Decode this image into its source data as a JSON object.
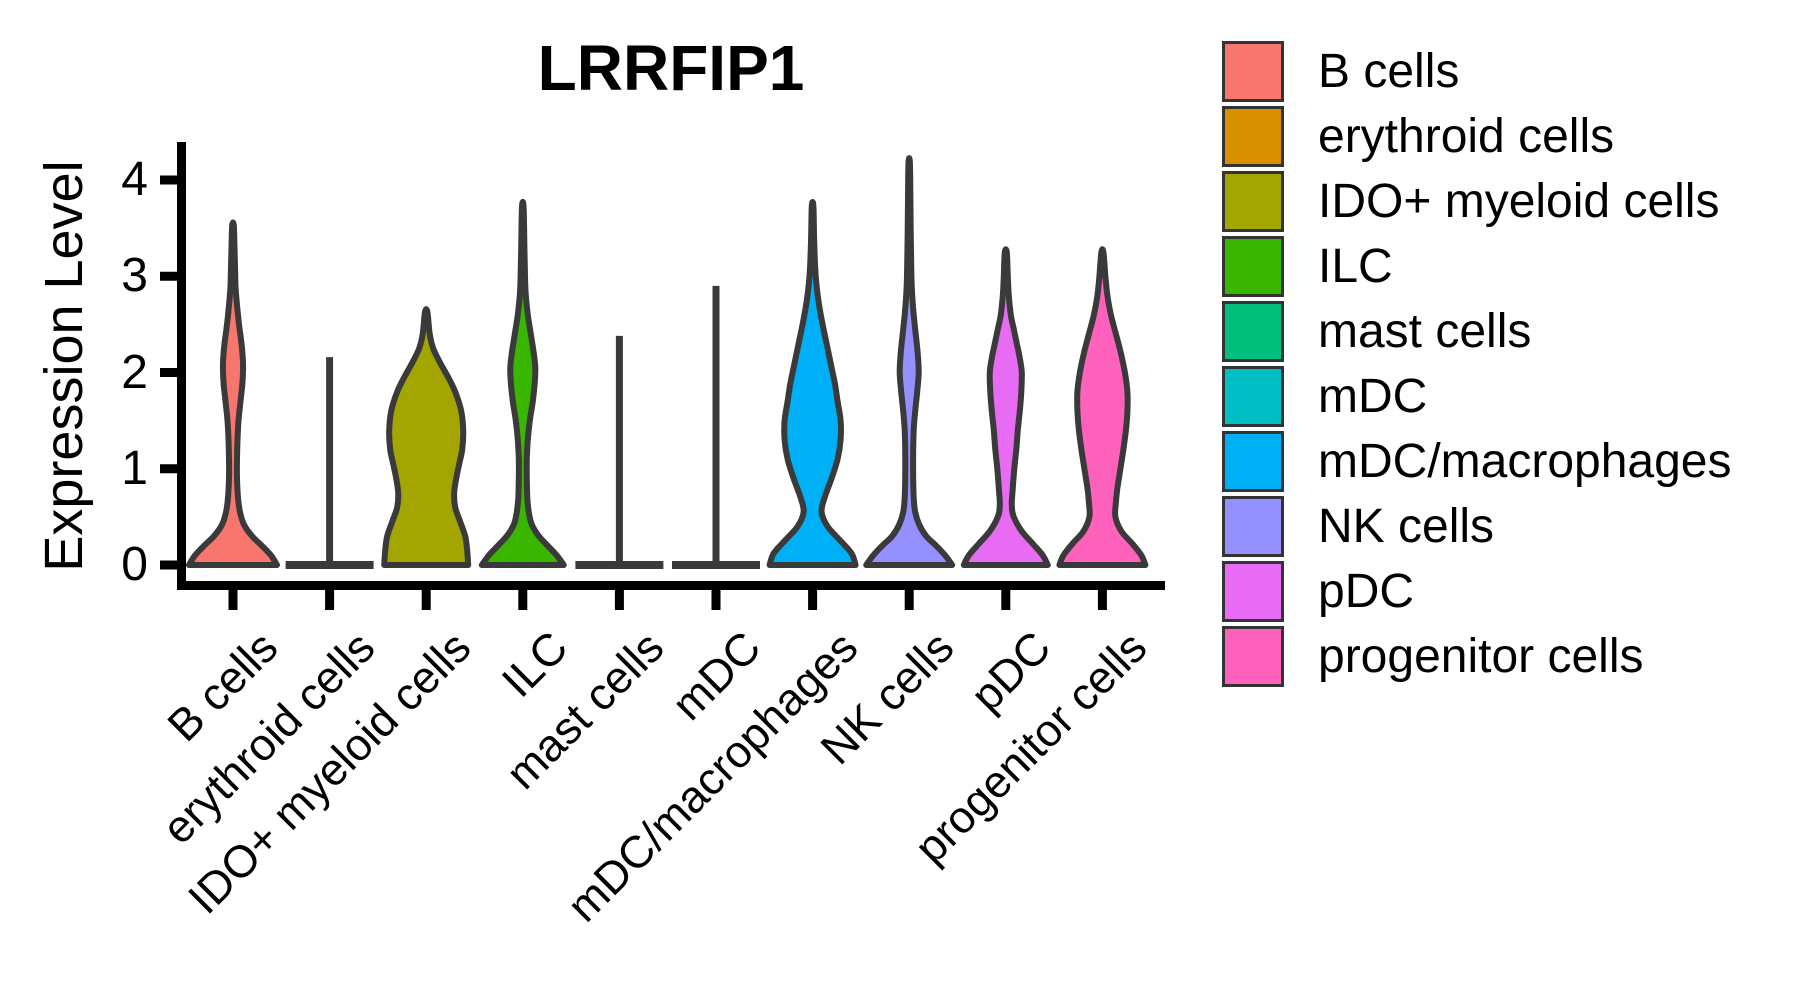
{
  "figure": {
    "background": "#ffffff",
    "outline_color": "#3A3A3A",
    "axis_color": "#000000"
  },
  "chart_data": {
    "type": "violin",
    "title": "LRRFIP1",
    "xlabel": "",
    "ylabel": "Expression Level",
    "yticks": [
      0,
      1,
      2,
      3,
      4
    ],
    "ylim": [
      0,
      4.35
    ],
    "grid": "off",
    "legend_position": "right",
    "categories": [
      "B cells",
      "erythroid cells",
      "IDO+ myeloid cells",
      "ILC",
      "mast cells",
      "mDC",
      "mDC/macrophages",
      "NK cells",
      "pDC",
      "progenitor cells"
    ],
    "series": [
      {
        "name": "B cells",
        "color": "#F8766D",
        "kind": "violin",
        "max_expr": 3.53,
        "profile": [
          [
            0,
            44
          ],
          [
            0.1,
            38
          ],
          [
            0.2,
            29
          ],
          [
            0.3,
            19
          ],
          [
            0.42,
            11
          ],
          [
            0.55,
            7
          ],
          [
            0.7,
            5
          ],
          [
            0.9,
            4
          ],
          [
            1.1,
            4
          ],
          [
            1.3,
            4.5
          ],
          [
            1.5,
            5.5
          ],
          [
            1.7,
            7.5
          ],
          [
            1.9,
            9.5
          ],
          [
            2.1,
            10
          ],
          [
            2.3,
            8.5
          ],
          [
            2.5,
            6
          ],
          [
            2.7,
            4
          ],
          [
            2.9,
            2.5
          ],
          [
            3.1,
            2
          ],
          [
            3.3,
            1.5
          ],
          [
            3.53,
            0.8
          ]
        ]
      },
      {
        "name": "erythroid cells",
        "color": "#D89000",
        "kind": "line",
        "max_expr": 2.16,
        "base_halfwidth": 44
      },
      {
        "name": "IDO+ myeloid cells",
        "color": "#A3A500",
        "kind": "violin",
        "max_expr": 2.63,
        "profile": [
          [
            0,
            42
          ],
          [
            0.15,
            41
          ],
          [
            0.3,
            39
          ],
          [
            0.45,
            34
          ],
          [
            0.6,
            29
          ],
          [
            0.75,
            28
          ],
          [
            0.9,
            30
          ],
          [
            1.05,
            33
          ],
          [
            1.2,
            36
          ],
          [
            1.4,
            37
          ],
          [
            1.6,
            35
          ],
          [
            1.8,
            29
          ],
          [
            1.95,
            22
          ],
          [
            2.1,
            14
          ],
          [
            2.25,
            7
          ],
          [
            2.4,
            3.5
          ],
          [
            2.63,
            1.2
          ]
        ]
      },
      {
        "name": "ILC",
        "color": "#39B600",
        "kind": "violin",
        "max_expr": 3.72,
        "profile": [
          [
            0,
            41
          ],
          [
            0.1,
            34
          ],
          [
            0.2,
            25
          ],
          [
            0.3,
            16
          ],
          [
            0.42,
            9
          ],
          [
            0.55,
            6
          ],
          [
            0.7,
            4.5
          ],
          [
            0.9,
            4
          ],
          [
            1.1,
            4
          ],
          [
            1.3,
            5
          ],
          [
            1.5,
            7
          ],
          [
            1.7,
            10
          ],
          [
            1.9,
            12
          ],
          [
            2.05,
            12.5
          ],
          [
            2.2,
            11
          ],
          [
            2.4,
            8
          ],
          [
            2.6,
            5
          ],
          [
            2.8,
            3
          ],
          [
            3.0,
            2.2
          ],
          [
            3.3,
            1.6
          ],
          [
            3.72,
            0.8
          ]
        ]
      },
      {
        "name": "mast cells",
        "color": "#00BF7D",
        "kind": "line",
        "max_expr": 2.38,
        "base_halfwidth": 44
      },
      {
        "name": "mDC",
        "color": "#00BFC4",
        "kind": "line",
        "max_expr": 2.9,
        "base_halfwidth": 44
      },
      {
        "name": "mDC/macrophages",
        "color": "#00B0F6",
        "kind": "violin",
        "max_expr": 3.73,
        "profile": [
          [
            0,
            43
          ],
          [
            0.12,
            39
          ],
          [
            0.25,
            28
          ],
          [
            0.4,
            15
          ],
          [
            0.55,
            9
          ],
          [
            0.7,
            12
          ],
          [
            0.9,
            19
          ],
          [
            1.1,
            25
          ],
          [
            1.3,
            28
          ],
          [
            1.5,
            28
          ],
          [
            1.7,
            25
          ],
          [
            1.9,
            22
          ],
          [
            2.1,
            18
          ],
          [
            2.3,
            14
          ],
          [
            2.5,
            10
          ],
          [
            2.7,
            6.5
          ],
          [
            2.9,
            4
          ],
          [
            3.1,
            2.5
          ],
          [
            3.4,
            1.5
          ],
          [
            3.73,
            0.8
          ]
        ]
      },
      {
        "name": "NK cells",
        "color": "#9590FF",
        "kind": "violin",
        "max_expr": 4.18,
        "profile": [
          [
            0,
            43
          ],
          [
            0.1,
            36
          ],
          [
            0.2,
            27
          ],
          [
            0.3,
            17
          ],
          [
            0.42,
            10
          ],
          [
            0.55,
            6
          ],
          [
            0.7,
            4.5
          ],
          [
            0.9,
            4
          ],
          [
            1.2,
            4
          ],
          [
            1.4,
            4.5
          ],
          [
            1.6,
            6
          ],
          [
            1.8,
            8
          ],
          [
            2.0,
            9.5
          ],
          [
            2.2,
            8.5
          ],
          [
            2.4,
            6.5
          ],
          [
            2.6,
            4.5
          ],
          [
            2.8,
            3
          ],
          [
            3.0,
            2.2
          ],
          [
            3.4,
            1.6
          ],
          [
            3.8,
            1.2
          ],
          [
            4.18,
            0.7
          ]
        ]
      },
      {
        "name": "pDC",
        "color": "#E76BF3",
        "kind": "violin",
        "max_expr": 3.25,
        "profile": [
          [
            0,
            42
          ],
          [
            0.1,
            37
          ],
          [
            0.22,
            27
          ],
          [
            0.35,
            16
          ],
          [
            0.5,
            8
          ],
          [
            0.62,
            6
          ],
          [
            0.8,
            7
          ],
          [
            1.0,
            8.5
          ],
          [
            1.2,
            10.5
          ],
          [
            1.4,
            12
          ],
          [
            1.6,
            14
          ],
          [
            1.8,
            15.5
          ],
          [
            2.0,
            16
          ],
          [
            2.15,
            14
          ],
          [
            2.3,
            11
          ],
          [
            2.45,
            8
          ],
          [
            2.6,
            5
          ],
          [
            2.8,
            3
          ],
          [
            3.0,
            2
          ],
          [
            3.25,
            1
          ]
        ]
      },
      {
        "name": "progenitor cells",
        "color": "#FF62BC",
        "kind": "violin",
        "max_expr": 3.25,
        "profile": [
          [
            0,
            43
          ],
          [
            0.1,
            39
          ],
          [
            0.22,
            30
          ],
          [
            0.35,
            19
          ],
          [
            0.5,
            13
          ],
          [
            0.65,
            13.5
          ],
          [
            0.8,
            15
          ],
          [
            1.0,
            18
          ],
          [
            1.2,
            21
          ],
          [
            1.4,
            23.5
          ],
          [
            1.6,
            25
          ],
          [
            1.8,
            25
          ],
          [
            2.0,
            22.5
          ],
          [
            2.2,
            18.5
          ],
          [
            2.4,
            13.5
          ],
          [
            2.6,
            8.5
          ],
          [
            2.8,
            5
          ],
          [
            3.0,
            3
          ],
          [
            3.25,
            1
          ]
        ]
      }
    ]
  },
  "legend": {
    "items": [
      {
        "label": "B cells",
        "color": "#F8766D"
      },
      {
        "label": "erythroid cells",
        "color": "#D89000"
      },
      {
        "label": "IDO+ myeloid cells",
        "color": "#A3A500"
      },
      {
        "label": "ILC",
        "color": "#39B600"
      },
      {
        "label": "mast cells",
        "color": "#00BF7D"
      },
      {
        "label": "mDC",
        "color": "#00BFC4"
      },
      {
        "label": "mDC/macrophages",
        "color": "#00B0F6"
      },
      {
        "label": "NK cells",
        "color": "#9590FF"
      },
      {
        "label": "pDC",
        "color": "#E76BF3"
      },
      {
        "label": "progenitor cells",
        "color": "#FF62BC"
      }
    ]
  }
}
